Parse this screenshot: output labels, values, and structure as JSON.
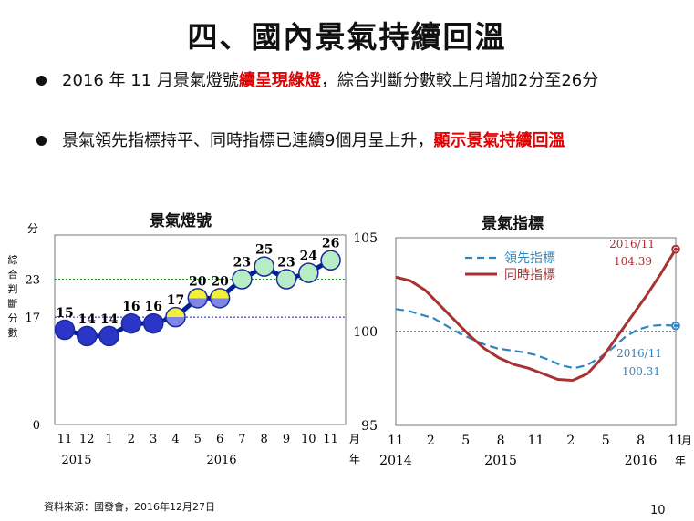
{
  "title": "四、國內景氣持續回溫",
  "bullets": [
    {
      "pre": "2016 年 11 月景氣燈號",
      "highlight": "續呈現綠燈",
      "post": "，綜合判斷分數較上月增加2分至26分"
    },
    {
      "pre": "景氣領先指標持平、同時指標已連續9個月呈上升，",
      "highlight": "顯示景氣持續回溫",
      "post": ""
    }
  ],
  "footer": {
    "source": "資料來源：國發會，2016年12月27日",
    "page": "10"
  },
  "chart_data": [
    {
      "type": "line",
      "title": "景氣燈號",
      "ylabel_unit": "分",
      "ylabel": "綜合判斷分數",
      "y_ticks": [
        "0",
        "17",
        "23"
      ],
      "reference_lines": [
        17,
        23
      ],
      "x_labels": [
        "11",
        "12",
        "1",
        "2",
        "3",
        "4",
        "5",
        "6",
        "7",
        "8",
        "9",
        "10",
        "11"
      ],
      "x_unit": "月",
      "year_labels": [
        "2015",
        "2016"
      ],
      "year_unit": "年",
      "values": [
        15,
        14,
        14,
        16,
        16,
        17,
        20,
        20,
        23,
        25,
        23,
        24,
        26
      ],
      "ylim": [
        0,
        30
      ],
      "colors": {
        "blue": "#2b35c8",
        "blue_yellow": "#7f86e6",
        "yellow": "#f0f03a",
        "yellow_green": "#d4f0a0",
        "green": "#b8ecc4",
        "line": "#00209a"
      }
    },
    {
      "type": "line",
      "title": "景氣指標",
      "y_ticks": [
        "95",
        "100",
        "105"
      ],
      "ylim": [
        95,
        105
      ],
      "reference_line": 100,
      "x_labels": [
        "11",
        "2",
        "5",
        "8",
        "11",
        "2",
        "5",
        "8",
        "11"
      ],
      "x_unit": "月",
      "year_labels": [
        "2014",
        "2015",
        "2016"
      ],
      "year_unit": "年",
      "series": [
        {
          "name": "領先指標",
          "color": "#2e86c1",
          "dash": true,
          "values": [
            101.2,
            101.1,
            100.9,
            100.7,
            100.3,
            99.9,
            99.6,
            99.3,
            99.1,
            99.0,
            98.9,
            98.75,
            98.5,
            98.2,
            98.05,
            98.2,
            98.6,
            99.1,
            99.7,
            100.1,
            100.3,
            100.35,
            100.31
          ]
        },
        {
          "name": "同時指標",
          "color": "#a83232",
          "dash": false,
          "values": [
            102.9,
            102.7,
            102.2,
            101.4,
            100.6,
            99.8,
            99.1,
            98.6,
            98.25,
            98.05,
            97.75,
            97.45,
            97.4,
            97.75,
            98.6,
            99.7,
            100.8,
            101.9,
            103.1,
            104.39
          ]
        }
      ],
      "annotations": [
        {
          "label": "2016/11",
          "value": "104.39",
          "color": "#a83232"
        },
        {
          "label": "2016/11",
          "value": "100.31",
          "color": "#2e86c1"
        }
      ]
    }
  ]
}
